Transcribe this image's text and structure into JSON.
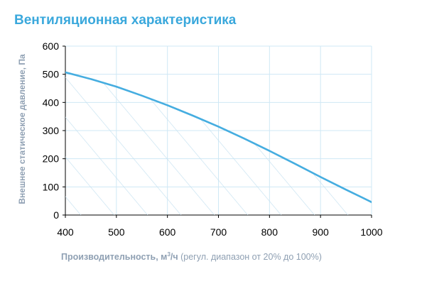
{
  "chart_data": {
    "type": "area",
    "title": "Вентиляционная характеристика",
    "ylabel": "Внешнее статическое давление, Па",
    "xlabel": {
      "main": "Производительность, м",
      "sup": "3",
      "unit": "/ч",
      "note": "(регул. диапазон от 20% до 100%)"
    },
    "x_ticks": [
      400,
      500,
      600,
      700,
      800,
      900,
      1000
    ],
    "y_ticks": [
      0,
      100,
      200,
      300,
      400,
      500,
      600
    ],
    "xlim": [
      400,
      1000
    ],
    "ylim": [
      0,
      600
    ],
    "grid": true,
    "fill": "hatched",
    "series": [
      {
        "x": [
          400,
          450,
          500,
          550,
          600,
          650,
          700,
          750,
          800,
          850,
          900,
          950,
          1000
        ],
        "values": [
          507,
          483,
          456,
          424,
          390,
          353,
          314,
          272,
          228,
          182,
          135,
          90,
          46
        ]
      }
    ],
    "colors": {
      "title": "#3aa8dc",
      "line": "#45ade0",
      "hatch": "#c4e1f0",
      "grid": "#cfe8f5",
      "axis_label": "#8fa0b3",
      "tick_label": "#000000"
    }
  }
}
